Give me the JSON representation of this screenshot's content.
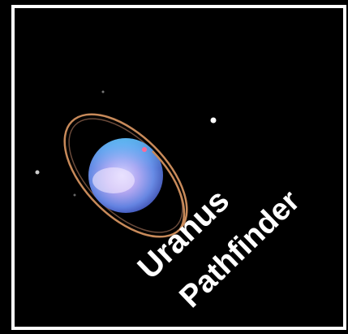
{
  "logo": {
    "line1": "Uranus",
    "line2": "Pathfinder"
  }
}
